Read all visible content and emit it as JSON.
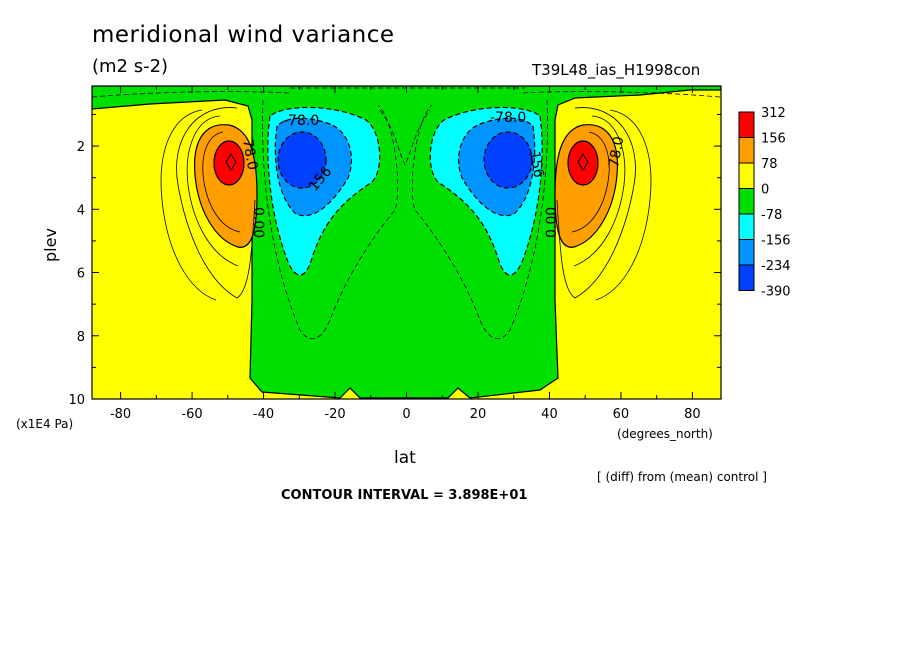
{
  "chart_data": {
    "type": "heatmap",
    "title": "meridional wind variance",
    "units": "(m2 s-2)",
    "experiment": "T39L48_ias_H1998con",
    "xlabel": "lat",
    "x_units": "(degrees_north)",
    "ylabel": "plev",
    "y_units": "(x1E4 Pa)",
    "xlim": [
      -88,
      88
    ],
    "ylim": [
      10,
      0.1
    ],
    "x_ticks": [
      -80,
      -60,
      -40,
      -20,
      0,
      20,
      40,
      60,
      80
    ],
    "y_ticks": [
      2,
      4,
      6,
      8,
      10
    ],
    "colorbar": {
      "levels": [
        312,
        156,
        78,
        0,
        -78,
        -156,
        -234,
        -390
      ],
      "colors": [
        "#ff0000",
        "#ff9e00",
        "#ffff00",
        "#00e000",
        "#00ffff",
        "#0094ff",
        "#0040ff"
      ]
    },
    "contour_labels": [
      {
        "text": "-78.0",
        "lat": -28,
        "plev": 1.1
      },
      {
        "text": "-78.0",
        "lat": 28,
        "plev": 1.1
      },
      {
        "text": "78.0",
        "lat": -43,
        "plev": 2.2
      },
      {
        "text": "78.0",
        "lat": 55,
        "plev": 2.2
      },
      {
        "text": "156",
        "lat": -24,
        "plev": 3.2
      },
      {
        "text": "156",
        "lat": 35,
        "plev": 2.7
      },
      {
        "text": "0.00",
        "lat": -37,
        "plev": 4.5
      },
      {
        "text": "0.00",
        "lat": 40,
        "plev": 4.3
      }
    ],
    "features": [
      {
        "name": "positive max SH",
        "lat": -49,
        "plev": 2.6,
        "value": "> 312"
      },
      {
        "name": "positive max NH",
        "lat": 49,
        "plev": 2.6,
        "value": "> 312"
      },
      {
        "name": "negative min SH",
        "lat": -30,
        "plev": 2.6,
        "value": "< -390"
      },
      {
        "name": "negative min NH",
        "lat": 30,
        "plev": 2.6,
        "value": "< -390"
      }
    ],
    "contour_interval": "CONTOUR INTERVAL = 3.898E+01",
    "note": "[ (diff) from (mean) control ]"
  }
}
